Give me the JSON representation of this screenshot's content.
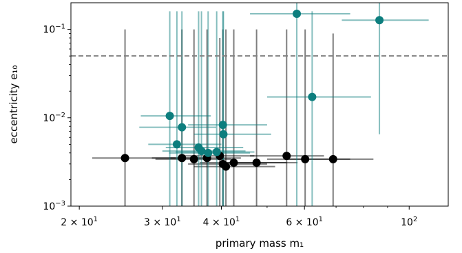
{
  "chart_data": {
    "type": "scatter",
    "xlabel": "primary mass m₁",
    "ylabel": "eccentricity e₁₀",
    "x_scale": "log",
    "y_scale": "log",
    "xlim": [
      19.2,
      121
    ],
    "ylim": [
      0.001,
      0.2
    ],
    "x_ticks": [
      {
        "value": 20,
        "base": "2 × 10",
        "exp": "1"
      },
      {
        "value": 30,
        "base": "3 × 10",
        "exp": "1"
      },
      {
        "value": 40,
        "base": "4 × 10",
        "exp": "1"
      },
      {
        "value": 60,
        "base": "6 × 10",
        "exp": "1"
      },
      {
        "value": 100,
        "base": "10",
        "exp": "2"
      }
    ],
    "y_ticks": [
      {
        "value": 0.001,
        "base": "10",
        "exp": "−3"
      },
      {
        "value": 0.01,
        "base": "10",
        "exp": "−2"
      },
      {
        "value": 0.1,
        "base": "10",
        "exp": "−1"
      }
    ],
    "threshold": {
      "y": 0.05,
      "style": "dashed",
      "color": "#808080"
    },
    "grid": false,
    "series": [
      {
        "color": "#000000",
        "points": [
          {
            "x": 25.0,
            "y": 0.0035,
            "xerr": [
              21.3,
              32.0
            ],
            "yerr": [
              0.001,
              0.1
            ]
          },
          {
            "x": 33.0,
            "y": 0.0035,
            "xerr": [
              28.5,
              38.0
            ],
            "yerr": [
              0.001,
              0.1
            ]
          },
          {
            "x": 35.0,
            "y": 0.0034,
            "xerr": [
              29.0,
              42.0
            ],
            "yerr": [
              0.001,
              0.1
            ]
          },
          {
            "x": 37.3,
            "y": 0.0035,
            "xerr": [
              31.0,
              44.0
            ],
            "yerr": [
              0.001,
              0.1
            ]
          },
          {
            "x": 39.7,
            "y": 0.0037,
            "xerr": [
              33.0,
              47.0
            ],
            "yerr": [
              0.001,
              0.08
            ]
          },
          {
            "x": 40.3,
            "y": 0.003,
            "xerr": [
              34.0,
              50.0
            ],
            "yerr": [
              0.001,
              0.1
            ]
          },
          {
            "x": 40.9,
            "y": 0.0028,
            "xerr": [
              35.0,
              52.0
            ],
            "yerr": [
              0.001,
              0.1
            ]
          },
          {
            "x": 42.5,
            "y": 0.0031,
            "xerr": [
              36.0,
              55.0
            ],
            "yerr": [
              0.001,
              0.1
            ]
          },
          {
            "x": 47.5,
            "y": 0.0031,
            "xerr": [
              40.0,
              58.0
            ],
            "yerr": [
              0.001,
              0.1
            ]
          },
          {
            "x": 55.0,
            "y": 0.0037,
            "xerr": [
              46.0,
              66.0
            ],
            "yerr": [
              0.001,
              0.1
            ]
          },
          {
            "x": 60.2,
            "y": 0.0034,
            "xerr": [
              50.0,
              75.0
            ],
            "yerr": [
              0.001,
              0.1
            ]
          },
          {
            "x": 69.0,
            "y": 0.0034,
            "xerr": [
              55.0,
              84.0
            ],
            "yerr": [
              0.001,
              0.09
            ]
          }
        ]
      },
      {
        "color": "#0d7e7e",
        "points": [
          {
            "x": 31.1,
            "y": 0.0105,
            "xerr": [
              27.0,
              38.0
            ],
            "yerr": [
              0.001,
              0.16
            ]
          },
          {
            "x": 32.2,
            "y": 0.005,
            "xerr": [
              28.0,
              40.0
            ],
            "yerr": [
              0.001,
              0.16
            ]
          },
          {
            "x": 33.0,
            "y": 0.0078,
            "xerr": [
              26.8,
              39.0
            ],
            "yerr": [
              0.001,
              0.16
            ]
          },
          {
            "x": 35.8,
            "y": 0.0046,
            "xerr": [
              30.5,
              44.5
            ],
            "yerr": [
              0.001,
              0.16
            ]
          },
          {
            "x": 36.3,
            "y": 0.0042,
            "xerr": [
              30.0,
              45.0
            ],
            "yerr": [
              0.001,
              0.16
            ]
          },
          {
            "x": 37.5,
            "y": 0.004,
            "xerr": [
              31.0,
              46.0
            ],
            "yerr": [
              0.001,
              0.16
            ]
          },
          {
            "x": 39.1,
            "y": 0.0041,
            "xerr": [
              32.0,
              47.0
            ],
            "yerr": [
              0.001,
              0.16
            ]
          },
          {
            "x": 40.3,
            "y": 0.0083,
            "xerr": [
              34.0,
              50.0
            ],
            "yerr": [
              0.001,
              0.16
            ]
          },
          {
            "x": 40.4,
            "y": 0.0065,
            "xerr": [
              35.0,
              51.0
            ],
            "yerr": [
              0.001,
              0.16
            ]
          },
          {
            "x": 57.8,
            "y": 0.15,
            "xerr": [
              46.0,
              75.0
            ],
            "yerr": [
              0.001,
              0.2
            ]
          },
          {
            "x": 62.3,
            "y": 0.0172,
            "xerr": [
              50.0,
              83.0
            ],
            "yerr": [
              0.001,
              0.16
            ]
          },
          {
            "x": 86.5,
            "y": 0.127,
            "xerr": [
              72.0,
              110.0
            ],
            "yerr": [
              0.0065,
              0.2
            ]
          }
        ]
      }
    ]
  }
}
